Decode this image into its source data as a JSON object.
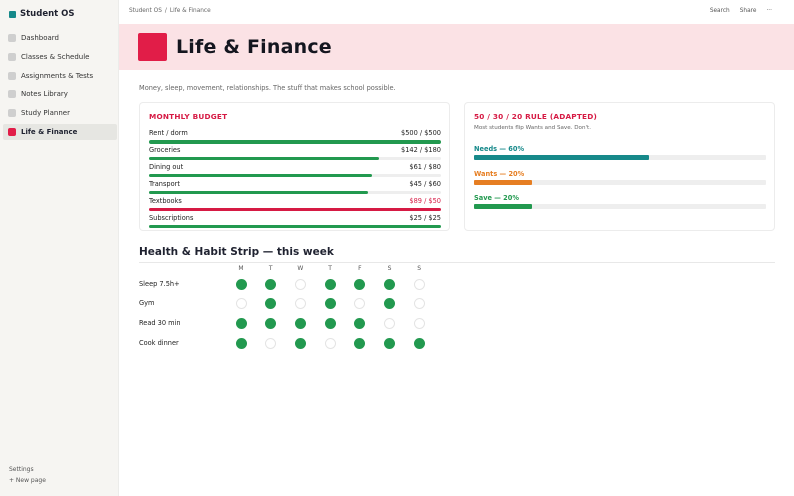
{
  "sidebar": {
    "brand": "Student OS",
    "items": [
      {
        "label": "Dashboard"
      },
      {
        "label": "Classes & Schedule"
      },
      {
        "label": "Assignments & Tests"
      },
      {
        "label": "Notes Library"
      },
      {
        "label": "Study Planner"
      },
      {
        "label": "Life & Finance"
      }
    ],
    "active_index": 5,
    "settings_label": "Settings",
    "new_page_label": "+  New page"
  },
  "topbar": {
    "breadcrumb": [
      "Student OS",
      "Life & Finance"
    ],
    "breadcrumb_separator": "/",
    "search_label": "Search",
    "share_label": "Share",
    "more_label": "···"
  },
  "page": {
    "title": "Life & Finance",
    "subtitle": "Money, sleep, movement, relationships. The stuff that makes school possible."
  },
  "colors": {
    "accent": "#e11d48",
    "brand": "#16898a",
    "good": "#22994f",
    "over": "#d61a44",
    "needs": "#16898a",
    "wants": "#e67e22",
    "save": "#22994f"
  },
  "budget": {
    "title": "MONTHLY BUDGET",
    "rows": [
      {
        "name": "Rent / dorm",
        "amount": "$500 / $500",
        "spent_fraction": 1.0,
        "over": false
      },
      {
        "name": "Groceries",
        "amount": "$142 / $180",
        "spent_fraction": 0.789,
        "over": false
      },
      {
        "name": "Dining out",
        "amount": "$61 / $80",
        "spent_fraction": 0.7625,
        "over": false
      },
      {
        "name": "Transport",
        "amount": "$45 / $60",
        "spent_fraction": 0.75,
        "over": false
      },
      {
        "name": "Textbooks",
        "amount": "$89 / $50",
        "spent_fraction": 1.0,
        "over": true
      },
      {
        "name": "Subscriptions",
        "amount": "$25 / $25",
        "spent_fraction": 1.0,
        "over": false
      }
    ]
  },
  "rule": {
    "title": "50 / 30 / 20 RULE (ADAPTED)",
    "note": "Most students flip Wants and Save. Don't.",
    "rows": [
      {
        "label": "Needs — 60%",
        "percent": 60,
        "color_key": "needs"
      },
      {
        "label": "Wants — 20%",
        "percent": 20,
        "color_key": "wants"
      },
      {
        "label": "Save — 20%",
        "percent": 20,
        "color_key": "save"
      }
    ]
  },
  "habits": {
    "title": "Health & Habit Strip — this week",
    "days": [
      "M",
      "T",
      "W",
      "T",
      "F",
      "S",
      "S"
    ],
    "rows": [
      {
        "name": "Sleep 7.5h+",
        "done": [
          true,
          true,
          false,
          true,
          true,
          true,
          false
        ]
      },
      {
        "name": "Gym",
        "done": [
          false,
          true,
          false,
          true,
          false,
          true,
          false
        ]
      },
      {
        "name": "Read 30 min",
        "done": [
          true,
          true,
          true,
          true,
          true,
          false,
          false
        ]
      },
      {
        "name": "Cook dinner",
        "done": [
          true,
          false,
          true,
          false,
          true,
          true,
          true
        ]
      }
    ]
  }
}
